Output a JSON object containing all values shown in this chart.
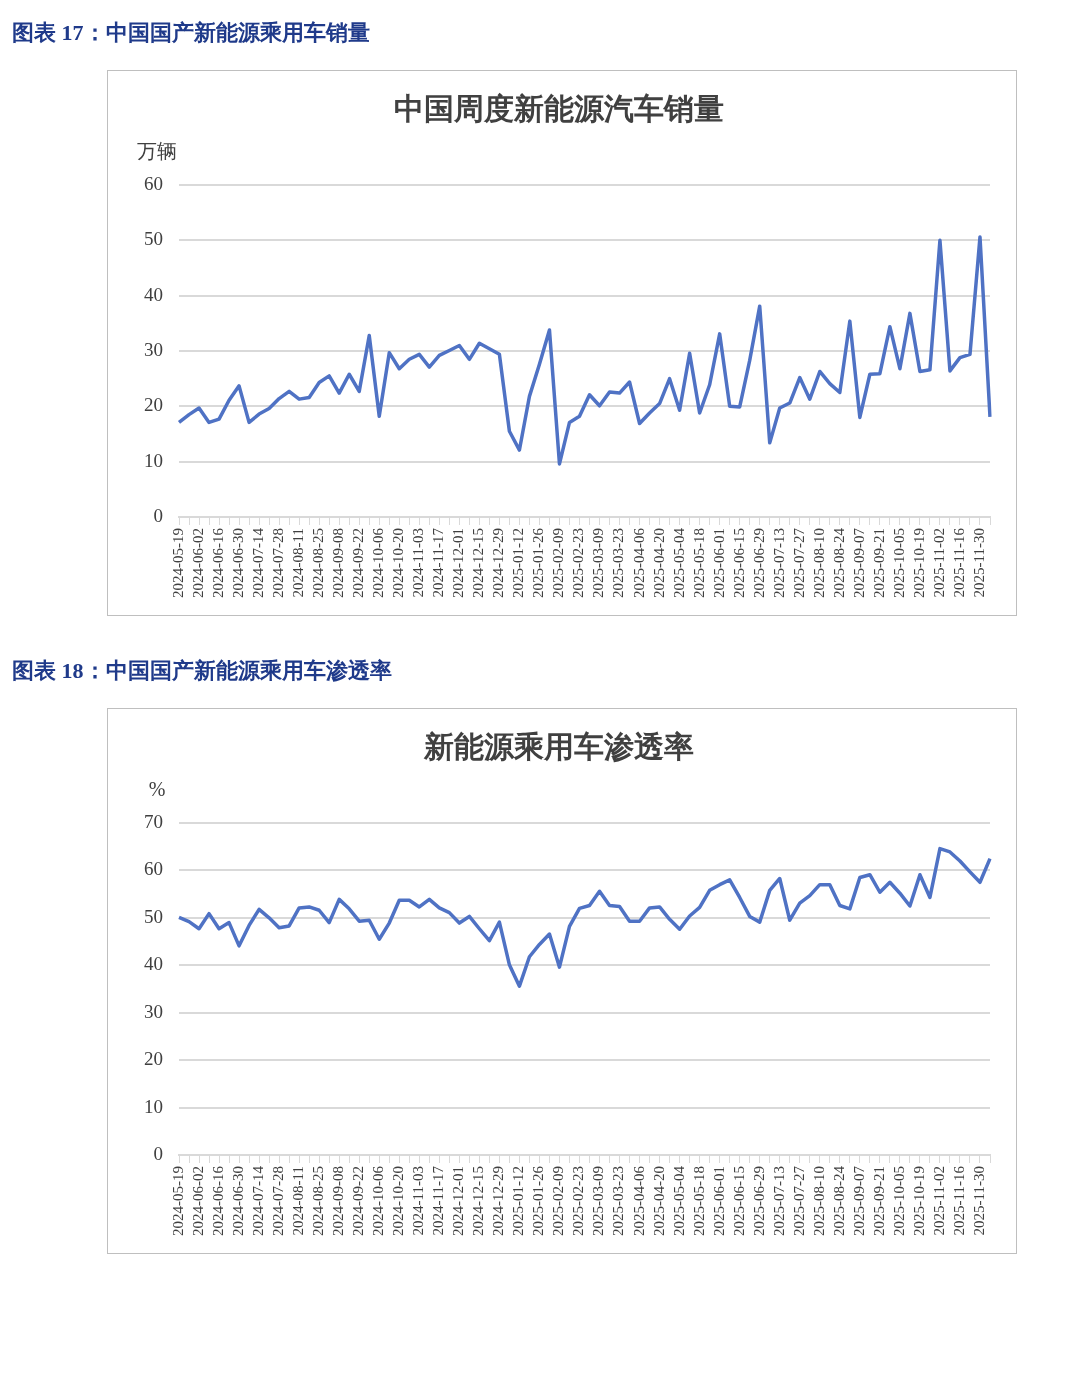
{
  "chart_data": [
    {
      "type": "line",
      "title": "中国周度新能源汽车销量",
      "ylabel": "万辆",
      "annotations": [
        "图表 17：中国国产新能源乘用车销量"
      ],
      "categories": [
        "2024-05-19",
        null,
        "2024-06-02",
        null,
        "2024-06-16",
        null,
        "2024-06-30",
        null,
        "2024-07-14",
        null,
        "2024-07-28",
        null,
        "2024-08-11",
        null,
        "2024-08-25",
        null,
        "2024-09-08",
        null,
        "2024-09-22",
        null,
        "2024-10-06",
        null,
        "2024-10-20",
        null,
        "2024-11-03",
        null,
        "2024-11-17",
        null,
        "2024-12-01",
        null,
        "2024-12-15",
        null,
        "2024-12-29",
        null,
        "2025-01-12",
        null,
        "2025-01-26",
        null,
        "2025-02-09",
        null,
        "2025-02-23",
        null,
        "2025-03-09",
        null,
        "2025-03-23",
        null,
        "2025-04-06",
        null,
        "2025-04-20",
        null,
        "2025-05-04",
        null,
        "2025-05-18",
        null,
        "2025-06-01",
        null,
        "2025-06-15",
        null,
        "2025-06-29",
        null,
        "2025-07-13",
        null,
        "2025-07-27",
        null,
        "2025-08-10",
        null,
        "2025-08-24",
        null,
        "2025-09-07",
        null,
        "2025-09-21",
        null,
        "2025-10-05",
        null,
        "2025-10-19",
        null,
        "2025-11-02",
        null,
        "2025-11-16",
        null,
        "2025-11-30",
        null
      ],
      "series": [
        {
          "color": "#4f72c4",
          "values": [
            17.1,
            18.5,
            19.7,
            17.1,
            17.7,
            21.1,
            23.7,
            17.1,
            18.6,
            19.6,
            21.4,
            22.7,
            21.3,
            21.6,
            24.3,
            25.5,
            22.4,
            25.8,
            22.7,
            32.8,
            18.2,
            29.7,
            26.8,
            28.5,
            29.4,
            27.1,
            29.2,
            30.1,
            31.0,
            28.5,
            31.4,
            30.4,
            29.4,
            15.5,
            12.1,
            21.8,
            27.6,
            33.8,
            9.6,
            17.1,
            18.2,
            22.1,
            20.1,
            22.6,
            22.4,
            24.4,
            16.9,
            18.8,
            20.5,
            25.0,
            19.3,
            29.6,
            18.8,
            23.9,
            33.1,
            20.0,
            19.9,
            28.3,
            38.1,
            13.4,
            19.7,
            20.6,
            25.2,
            21.3,
            26.3,
            24.1,
            22.5,
            35.4,
            18.0,
            25.8,
            25.9,
            34.4,
            26.8,
            36.8,
            26.3,
            26.6,
            50.0,
            26.4,
            28.8,
            29.4,
            50.6,
            18.1
          ]
        }
      ],
      "ylim": [
        0,
        60
      ],
      "yticks": [
        0,
        10,
        20,
        30,
        40,
        50,
        60
      ],
      "grid": "y",
      "legend": false,
      "marker": "none",
      "line_style": "solid"
    },
    {
      "type": "line",
      "title": "新能源乘用车渗透率",
      "ylabel": "%",
      "annotations": [
        "图表 18：中国国产新能源乘用车渗透率"
      ],
      "categories": [
        "2024-05-19",
        null,
        "2024-06-02",
        null,
        "2024-06-16",
        null,
        "2024-06-30",
        null,
        "2024-07-14",
        null,
        "2024-07-28",
        null,
        "2024-08-11",
        null,
        "2024-08-25",
        null,
        "2024-09-08",
        null,
        "2024-09-22",
        null,
        "2024-10-06",
        null,
        "2024-10-20",
        null,
        "2024-11-03",
        null,
        "2024-11-17",
        null,
        "2024-12-01",
        null,
        "2024-12-15",
        null,
        "2024-12-29",
        null,
        "2025-01-12",
        null,
        "2025-01-26",
        null,
        "2025-02-09",
        null,
        "2025-02-23",
        null,
        "2025-03-09",
        null,
        "2025-03-23",
        null,
        "2025-04-06",
        null,
        "2025-04-20",
        null,
        "2025-05-04",
        null,
        "2025-05-18",
        null,
        "2025-06-01",
        null,
        "2025-06-15",
        null,
        "2025-06-29",
        null,
        "2025-07-13",
        null,
        "2025-07-27",
        null,
        "2025-08-10",
        null,
        "2025-08-24",
        null,
        "2025-09-07",
        null,
        "2025-09-21",
        null,
        "2025-10-05",
        null,
        "2025-10-19",
        null,
        "2025-11-02",
        null,
        "2025-11-16",
        null,
        "2025-11-30",
        null
      ],
      "series": [
        {
          "color": "#4f72c4",
          "values": [
            50.1,
            49.2,
            47.7,
            50.9,
            47.7,
            49.0,
            44.1,
            48.4,
            51.8,
            50.0,
            47.9,
            48.3,
            52.1,
            52.3,
            51.6,
            49.0,
            53.9,
            51.9,
            49.3,
            49.5,
            45.5,
            48.9,
            53.7,
            53.7,
            52.3,
            53.9,
            52.1,
            51.1,
            48.9,
            50.3,
            47.7,
            45.2,
            49.1,
            40.1,
            35.6,
            41.8,
            44.4,
            46.6,
            39.6,
            48.2,
            52.0,
            52.6,
            55.6,
            52.6,
            52.4,
            49.3,
            49.3,
            52.1,
            52.3,
            49.7,
            47.6,
            50.4,
            52.2,
            55.8,
            57.0,
            58.0,
            54.3,
            50.3,
            49.1,
            55.8,
            58.3,
            49.5,
            53.1,
            54.7,
            57.0,
            57.0,
            52.6,
            51.9,
            58.5,
            59.1,
            55.4,
            57.5,
            55.2,
            52.5,
            59.1,
            54.3,
            64.6,
            63.9,
            62.0,
            59.7,
            57.5,
            62.5
          ]
        }
      ],
      "ylim": [
        0,
        70
      ],
      "yticks": [
        0,
        10,
        20,
        30,
        40,
        50,
        60,
        70
      ],
      "grid": "y",
      "legend": false,
      "marker": "none",
      "line_style": "solid"
    }
  ]
}
